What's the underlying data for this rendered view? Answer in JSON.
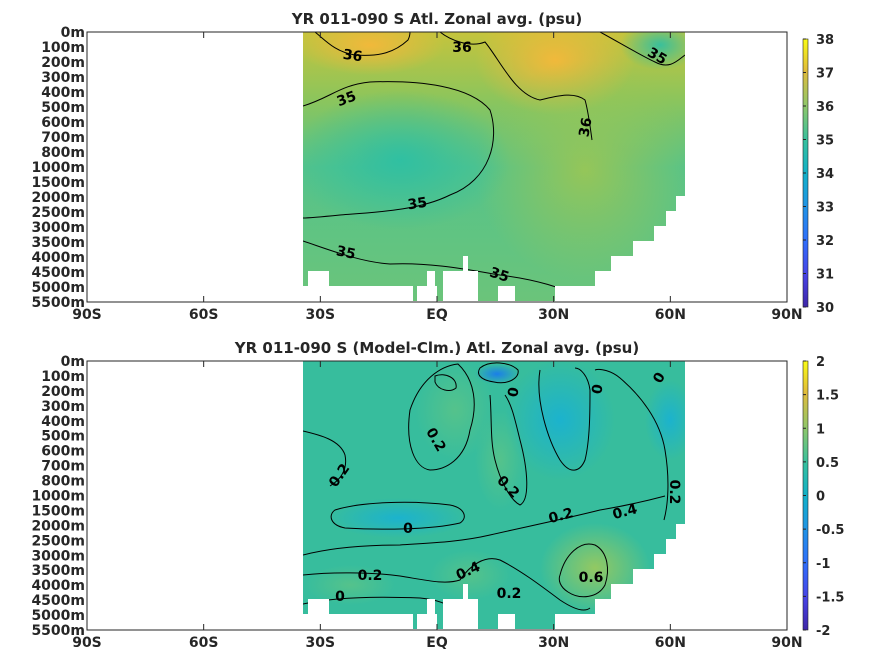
{
  "chart_data": [
    {
      "type": "heatmap",
      "title": "YR 011-090 S Atl. Zonal avg. (psu)",
      "x_ticks": [
        "90S",
        "60S",
        "30S",
        "EQ",
        "30N",
        "60N",
        "90N"
      ],
      "y_ticks": [
        "0m",
        "100m",
        "200m",
        "300m",
        "400m",
        "500m",
        "600m",
        "700m",
        "800m",
        "1000m",
        "1500m",
        "2000m",
        "2500m",
        "3000m",
        "3500m",
        "4000m",
        "4500m",
        "5000m",
        "5500m"
      ],
      "colorbar": {
        "min": 30,
        "max": 38,
        "ticks": [
          "30",
          "31",
          "32",
          "33",
          "34",
          "35",
          "36",
          "37",
          "38"
        ]
      },
      "data_extent_lat": [
        -35,
        65
      ],
      "contour_labels": [
        "36",
        "36",
        "35",
        "35",
        "36",
        "35",
        "35",
        "35"
      ],
      "colormap": "parula"
    },
    {
      "type": "heatmap",
      "title": "YR 011-090 S (Model-Clm.) Atl. Zonal avg. (psu)",
      "x_ticks": [
        "90S",
        "60S",
        "30S",
        "EQ",
        "30N",
        "60N",
        "90N"
      ],
      "y_ticks": [
        "0m",
        "100m",
        "200m",
        "300m",
        "400m",
        "500m",
        "600m",
        "700m",
        "800m",
        "1000m",
        "1500m",
        "2000m",
        "2500m",
        "3000m",
        "3500m",
        "4000m",
        "4500m",
        "5000m",
        "5500m"
      ],
      "colorbar": {
        "min": -2,
        "max": 2,
        "ticks": [
          "-2",
          "-1.5",
          "-1",
          "-0.5",
          "0",
          "0.5",
          "1",
          "1.5",
          "2"
        ]
      },
      "data_extent_lat": [
        -35,
        65
      ],
      "contour_labels": [
        "0",
        "0",
        "0",
        "0.2",
        "0.2",
        "0.2",
        "0.2",
        "0.2",
        "0.4",
        "0.2",
        "0.2",
        "0",
        "0.4",
        "0.2",
        "0.6",
        "0"
      ],
      "colormap": "parula"
    }
  ]
}
